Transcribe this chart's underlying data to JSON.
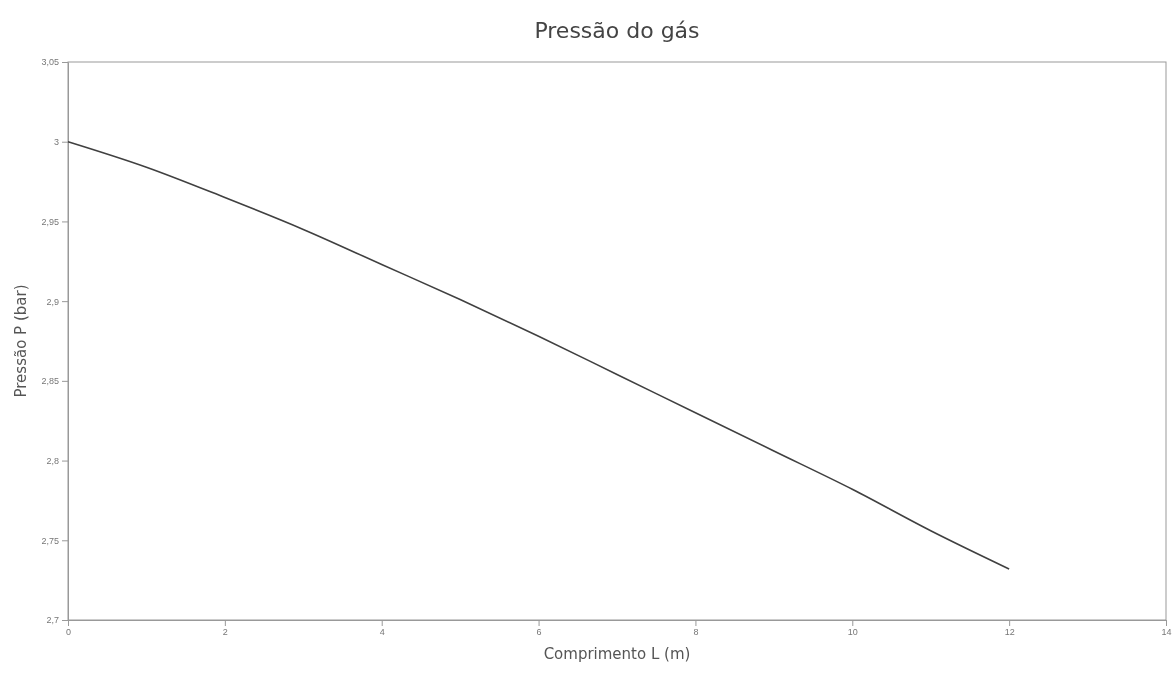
{
  "chart_data": {
    "type": "line",
    "title": "Pressão do gás",
    "xlabel": "Comprimento L (m)",
    "ylabel": "Pressão P (bar)",
    "x": [
      0,
      1,
      2,
      3,
      4,
      5,
      6,
      7,
      8,
      9,
      10,
      11,
      12
    ],
    "series": [
      {
        "color": "#404040",
        "values": [
          3,
          2.984,
          2.965,
          2.945,
          2.923,
          2.901,
          2.878,
          2.854,
          2.83,
          2.806,
          2.782,
          2.756,
          2.732
        ]
      }
    ],
    "xlim": [
      0,
      14
    ],
    "xticks": [
      0,
      2,
      4,
      6,
      8,
      10,
      12,
      14
    ],
    "ylim": [
      2.7,
      3.05
    ],
    "yticks": [
      {
        "value": 2.7,
        "label": "2,7"
      },
      {
        "value": 2.75,
        "label": "2,75"
      },
      {
        "value": 2.8,
        "label": "2,8"
      },
      {
        "value": 2.85,
        "label": "2,85"
      },
      {
        "value": 2.9,
        "label": "2,9"
      },
      {
        "value": 2.95,
        "label": "2,95"
      },
      {
        "value": 3,
        "label": "3"
      },
      {
        "value": 3.05,
        "label": "3,05"
      }
    ],
    "grid": false,
    "marker": "none",
    "line_style": "solid"
  }
}
